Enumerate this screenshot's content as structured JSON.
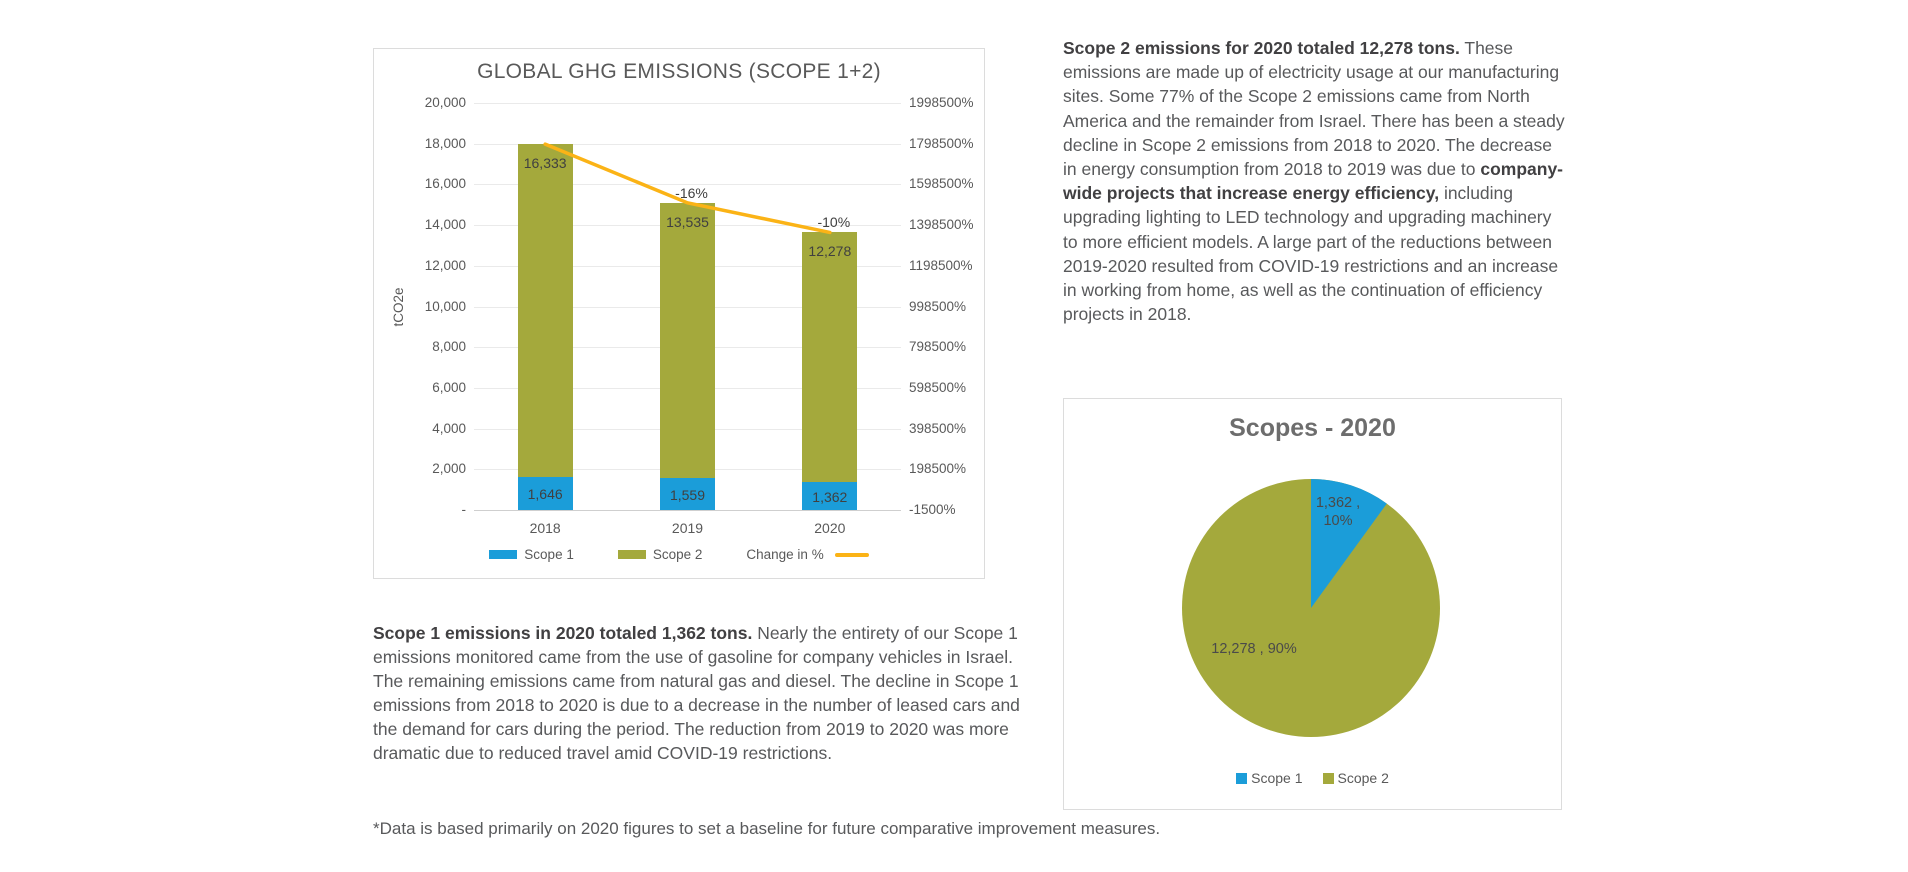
{
  "colors": {
    "scope1_blue": "#1B9DD9",
    "scope2_olive": "#A4A93C",
    "change_line_yellow": "#FBB316",
    "axis_text": "#595959",
    "data_label": "#404040",
    "body_text": "#58595B",
    "border": "#DCDCDC"
  },
  "chart_data": [
    {
      "type": "bar",
      "title": "GLOBAL GHG EMISSIONS (SCOPE 1+2)",
      "ylabel": "tCO2e",
      "xlabel": "",
      "categories": [
        "2018",
        "2019",
        "2020"
      ],
      "stacked": true,
      "series": [
        {
          "name": "Scope 1",
          "color_key": "scope1_blue",
          "values": [
            1646,
            1559,
            1362
          ],
          "labels": [
            "1,646",
            "1,559",
            "1,362"
          ]
        },
        {
          "name": "Scope 2",
          "color_key": "scope2_olive",
          "values": [
            16333,
            13535,
            12278
          ],
          "labels": [
            "16,333",
            "13,535",
            "12,278"
          ]
        }
      ],
      "line_series": {
        "name": "Change in %",
        "color_key": "change_line_yellow",
        "values": [
          null,
          -16,
          -10
        ],
        "labels": [
          "",
          "-16%",
          "-10%"
        ]
      },
      "ylim": [
        0,
        20000
      ],
      "left_axis_ticks": [
        "20,000",
        "18,000",
        "16,000",
        "14,000",
        "12,000",
        "10,000",
        "8,000",
        "6,000",
        "4,000",
        "2,000",
        "-"
      ],
      "right_axis_ticks": [
        "1998500%",
        "1798500%",
        "1598500%",
        "1398500%",
        "1198500%",
        "998500%",
        "798500%",
        "598500%",
        "398500%",
        "198500%",
        "-1500%"
      ],
      "grid": "horizontal",
      "legend_position": "bottom"
    },
    {
      "type": "pie",
      "title": "Scopes - 2020",
      "slices": [
        {
          "name": "Scope 1",
          "value": 1362,
          "pct": 10,
          "label": "1,362 ,\n10%",
          "color_key": "scope1_blue"
        },
        {
          "name": "Scope 2",
          "value": 12278,
          "pct": 90,
          "label": "12,278 , 90%",
          "color_key": "scope2_olive"
        }
      ],
      "start_angle_deg": 0,
      "legend_position": "bottom"
    }
  ],
  "text": {
    "scope2_paragraph": {
      "runs": [
        {
          "bold": true,
          "text": "Scope 2 emissions for 2020 totaled 12,278 tons."
        },
        {
          "bold": false,
          "text": " These emissions are made up of electricity usage at our manufacturing sites. Some 77% of the Scope 2 emissions came from North America and the remainder from Israel. There has been a steady decline in Scope 2 emissions from 2018 to 2020. The decrease in energy consumption from 2018 to 2019 was due to "
        },
        {
          "bold": true,
          "text": "company-wide projects that increase energy efficiency,"
        },
        {
          "bold": false,
          "text": " including upgrading lighting to LED technology and upgrading machinery to more efficient models. A large part of the reductions between 2019-2020 resulted from COVID-19 restrictions and an increase in working from home, as well as the continuation of efficiency projects in 2018."
        }
      ]
    },
    "scope1_paragraph": {
      "runs": [
        {
          "bold": true,
          "text": "Scope 1 emissions in 2020 totaled 1,362 tons."
        },
        {
          "bold": false,
          "text": " Nearly the entirety of our Scope 1 emissions monitored came from the use of gasoline for company vehicles in Israel. The remaining emissions came from natural gas and diesel. The decline in Scope 1 emissions from 2018 to 2020 is due to a decrease in the number of leased cars and the demand for cars during the period. The reduction from 2019 to 2020 was more dramatic due to reduced travel amid COVID-19 restrictions."
        }
      ]
    },
    "footnote": "*Data is based primarily on 2020 figures to set a baseline for future comparative improvement measures."
  }
}
